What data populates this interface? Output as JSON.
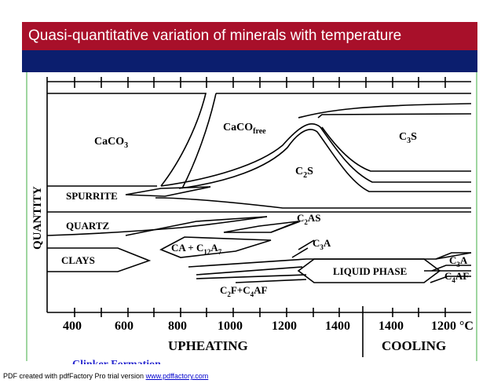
{
  "slide": {
    "title": "Quasi-quantitative variation of minerals with temperature"
  },
  "axes": {
    "y_label": "QUANTITY",
    "upheating_ticks": [
      "400",
      "600",
      "800",
      "1000",
      "1200",
      "1400"
    ],
    "cooling_ticks": [
      "1400",
      "1200 °C"
    ],
    "upheating_label": "UPHEATING",
    "cooling_label": "COOLING"
  },
  "phases": {
    "caco3": "CaCO",
    "caco3_sub": "3",
    "caco_free": "CaCO",
    "caco_free_sub": "free",
    "c3s": "C",
    "c3s_sub": "3",
    "c3s_tail": "S",
    "c2s": "C",
    "c2s_sub": "2",
    "c2s_tail": "S",
    "spurrite": "SPURRITE",
    "quartz": "QUARTZ",
    "c2as": "C",
    "c2as_sub": "2",
    "c2as_tail": "AS",
    "clays": "CLAYS",
    "ca_c12a7": "CA + C",
    "ca_c12a7_sub": "12",
    "ca_c12a7_tail": "A",
    "ca_c12a7_sub2": "7",
    "c3a": "C",
    "c3a_sub": "3",
    "c3a_tail": "A",
    "liquid_phase": "LIQUID PHASE",
    "c3a_right": "C",
    "c3a_right_sub": "3",
    "c3a_right_tail": "A",
    "c4af_right": "C",
    "c4af_right_sub": "4",
    "c4af_right_tail": "AF",
    "c2f_c4af": "C",
    "c2f_c4af_sub": "2",
    "c2f_c4af_mid": "F+C",
    "c2f_c4af_sub2": "4",
    "c2f_c4af_tail": "AF"
  },
  "bottom_cut_text": "Clinker Formation",
  "footer": {
    "prefix": "PDF created with pdfFactory Pro trial version ",
    "link_text": "www.pdffactory.com"
  }
}
